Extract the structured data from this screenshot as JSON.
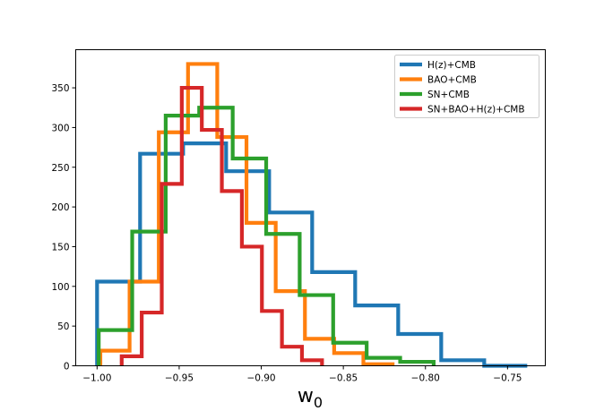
{
  "chart_data": {
    "type": "histogram",
    "title": "",
    "xlabel": "w",
    "xlabel_subscript": "0",
    "ylabel": "",
    "xlim": [
      -1.013,
      -0.727
    ],
    "ylim": [
      0,
      398
    ],
    "xticks": [
      -1.0,
      -0.95,
      -0.9,
      -0.85,
      -0.8,
      -0.75
    ],
    "xtick_labels": [
      "−1.00",
      "−0.95",
      "−0.90",
      "−0.85",
      "−0.80",
      "−0.75"
    ],
    "yticks": [
      0,
      50,
      100,
      150,
      200,
      250,
      300,
      350
    ],
    "ytick_labels": [
      "0",
      "50",
      "100",
      "150",
      "200",
      "250",
      "300",
      "350"
    ],
    "legend_position": "top-right",
    "series": [
      {
        "name": "H(z)+CMB",
        "color": "#1f77b4",
        "edges": [
          -1.0,
          -0.9738,
          -0.9476,
          -0.9214,
          -0.8952,
          -0.869,
          -0.8428,
          -0.8166,
          -0.7904,
          -0.7642,
          -0.738
        ],
        "counts": [
          106,
          267,
          280,
          245,
          193,
          118,
          76,
          40,
          7,
          0
        ]
      },
      {
        "name": "BAO+CMB",
        "color": "#ff7f0e",
        "edges": [
          -0.998,
          -0.9802,
          -0.9624,
          -0.9446,
          -0.9268,
          -0.909,
          -0.8912,
          -0.8734,
          -0.8556,
          -0.8378,
          -0.82
        ],
        "counts": [
          19,
          106,
          294,
          380,
          288,
          180,
          94,
          34,
          16,
          2
        ]
      },
      {
        "name": "SN+CMB",
        "color": "#2ca02c",
        "edges": [
          -0.999,
          -0.9786,
          -0.9582,
          -0.9378,
          -0.9174,
          -0.897,
          -0.8766,
          -0.8562,
          -0.8358,
          -0.8154,
          -0.795
        ],
        "counts": [
          45,
          169,
          315,
          325,
          261,
          166,
          89,
          29,
          10,
          5
        ]
      },
      {
        "name": "SN+BAO+H(z)+CMB",
        "color": "#d62728",
        "edges": [
          -0.985,
          -0.9728,
          -0.9606,
          -0.9484,
          -0.9362,
          -0.924,
          -0.9118,
          -0.8996,
          -0.8874,
          -0.8752,
          -0.863
        ],
        "counts": [
          12,
          67,
          229,
          350,
          297,
          220,
          150,
          69,
          24,
          7
        ]
      }
    ]
  }
}
